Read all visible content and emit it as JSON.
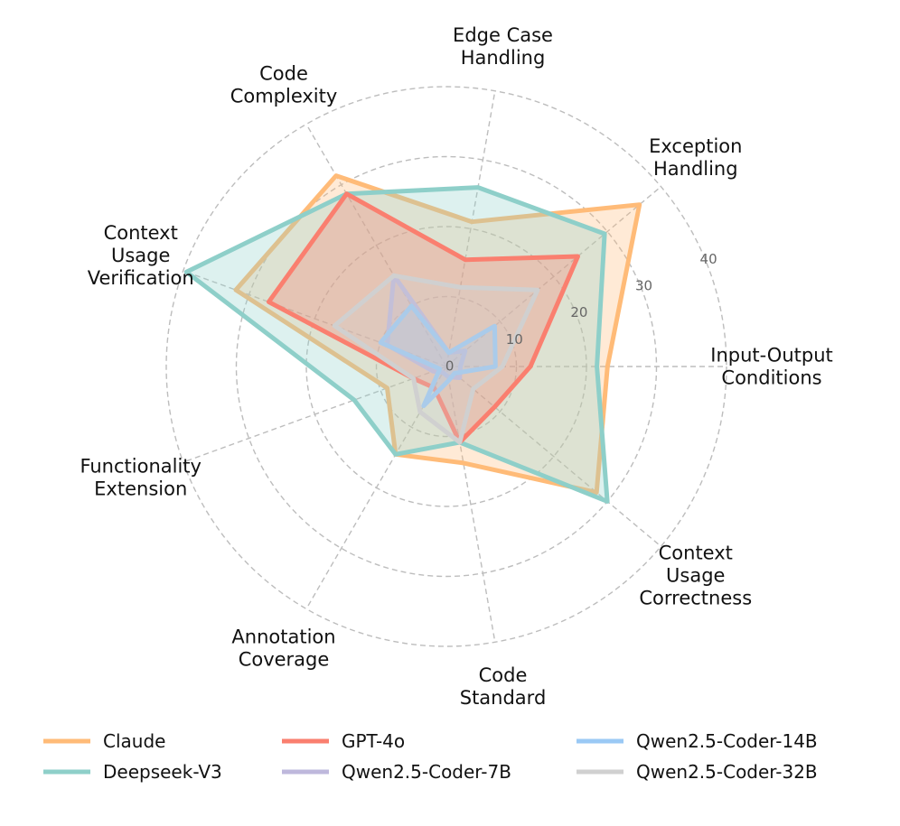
{
  "chart_data": {
    "type": "radar",
    "title": "",
    "axes": [
      [
        "Input-Output",
        "Conditions"
      ],
      [
        "Exception",
        "Handling"
      ],
      [
        "Edge Case",
        "Handling"
      ],
      [
        "Code",
        "Complexity"
      ],
      [
        "Context",
        "Usage",
        "Verification"
      ],
      [
        "Functionality",
        "Extension"
      ],
      [
        "Annotation",
        "Coverage"
      ],
      [
        "Code",
        "Standard"
      ],
      [
        "Context",
        "Usage",
        "Correctness"
      ]
    ],
    "radial_ticks": [
      "0",
      "10",
      "20",
      "30",
      "40"
    ],
    "rlim": [
      0,
      40
    ],
    "grid": true,
    "legend_position": "bottom",
    "series": [
      {
        "name": "Claude",
        "color": "#ffbb78",
        "values": [
          23.0,
          36.0,
          21.0,
          31.5,
          32.0,
          9.0,
          14.5,
          14.0,
          28.0
        ]
      },
      {
        "name": "Deepseek-V3",
        "color": "#8ecfc9",
        "values": [
          21.5,
          29.5,
          26.0,
          28.5,
          39.5,
          14.0,
          14.5,
          11.0,
          30.0
        ]
      },
      {
        "name": "GPT-4o",
        "color": "#fa7f6f",
        "values": [
          12.0,
          24.5,
          15.5,
          28.5,
          27.0,
          5.0,
          3.5,
          11.0,
          9.0
        ]
      },
      {
        "name": "Qwen2.5-Coder-7B",
        "color": "#beb8dc",
        "values": [
          2.0,
          3.5,
          2.0,
          15.0,
          9.0,
          2.0,
          1.0,
          1.5,
          2.5
        ]
      },
      {
        "name": "Qwen2.5-Coder-14B",
        "color": "#9ac9f5",
        "values": [
          7.0,
          9.0,
          2.0,
          10.0,
          10.0,
          1.0,
          6.5,
          2.0,
          1.5
        ]
      },
      {
        "name": "Qwen2.5-Coder-32B",
        "color": "#d0d0d0",
        "values": [
          8.0,
          17.0,
          11.5,
          15.0,
          17.0,
          5.0,
          7.5,
          11.0,
          5.0
        ]
      }
    ]
  }
}
